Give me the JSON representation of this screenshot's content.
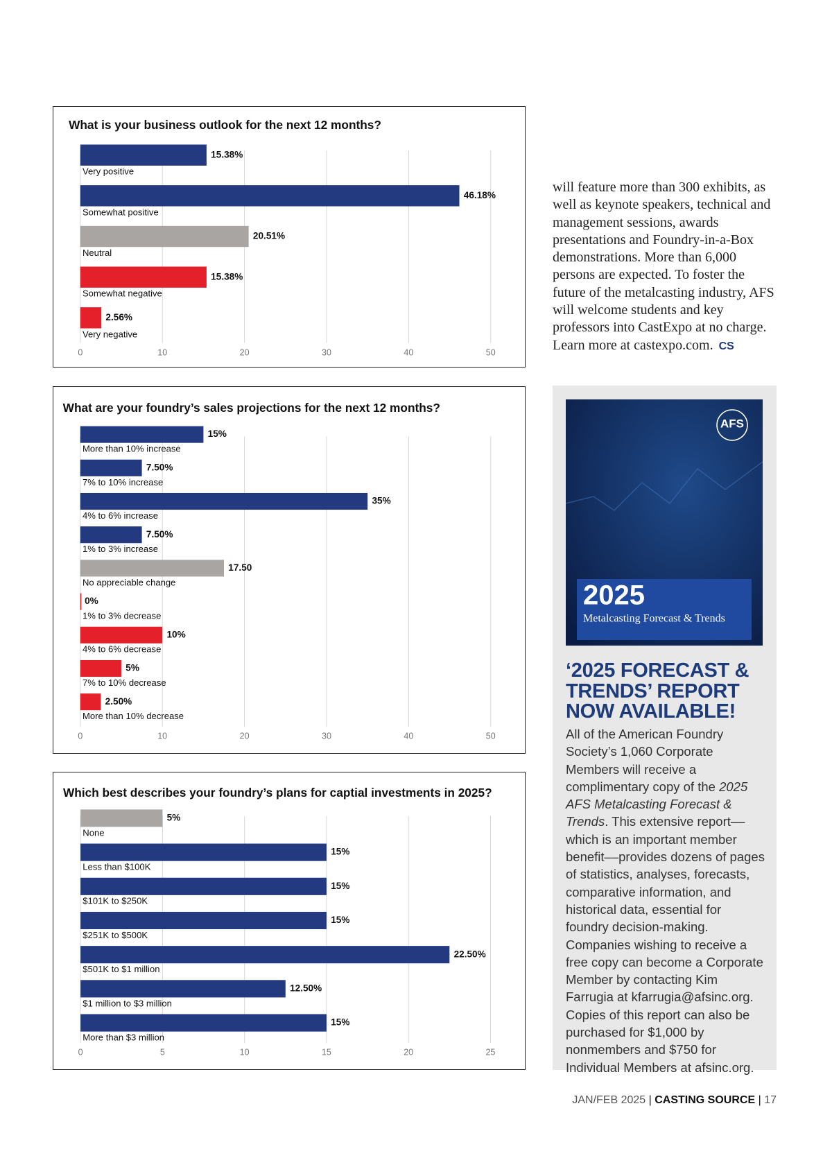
{
  "chart_data": [
    {
      "type": "bar",
      "orientation": "horizontal",
      "title": "What is your business outlook for the next 12 months?",
      "categories": [
        "Very positive",
        "Somewhat positive",
        "Neutral",
        "Somewhat negative",
        "Very negative"
      ],
      "values": [
        15.38,
        46.18,
        20.51,
        15.38,
        2.56
      ],
      "value_labels": [
        "15.38%",
        "46.18%",
        "20.51%",
        "15.38%",
        "2.56%"
      ],
      "colors": [
        "#233a80",
        "#233a80",
        "#a9a5a3",
        "#e4202a",
        "#e4202a"
      ],
      "xlim": [
        0,
        50
      ],
      "xticks": [
        0,
        10,
        20,
        30,
        40,
        50
      ],
      "grid": true
    },
    {
      "type": "bar",
      "orientation": "horizontal",
      "title": "What are your foundry’s sales projections for the next 12 months?",
      "categories": [
        "More than 10% increase",
        "7% to 10% increase",
        "4% to 6% increase",
        "1% to 3% increase",
        "No appreciable change",
        "1% to 3% decrease",
        "4% to 6% decrease",
        "7% to 10% decrease",
        "More than 10% decrease"
      ],
      "values": [
        15,
        7.5,
        35,
        7.5,
        17.5,
        0,
        10,
        5,
        2.5
      ],
      "value_labels": [
        "15%",
        "7.50%",
        "35%",
        "7.50%",
        "17.50",
        "0%",
        "10%",
        "5%",
        "2.50%"
      ],
      "colors": [
        "#233a80",
        "#233a80",
        "#233a80",
        "#233a80",
        "#a9a5a3",
        "#e4202a",
        "#e4202a",
        "#e4202a",
        "#e4202a"
      ],
      "xlim": [
        0,
        50
      ],
      "xticks": [
        0,
        10,
        20,
        30,
        40,
        50
      ],
      "grid": true
    },
    {
      "type": "bar",
      "orientation": "horizontal",
      "title": "Which best describes your foundry’s plans for captial investments in 2025?",
      "categories": [
        "None",
        "Less than $100K",
        "$101K to $250K",
        "$251K to $500K",
        "$501K to $1 million",
        "$1 million to $3 million",
        "More than $3 million"
      ],
      "values": [
        5,
        15,
        15,
        15,
        22.5,
        12.5,
        15
      ],
      "value_labels": [
        "5%",
        "15%",
        "15%",
        "15%",
        "22.50%",
        "12.50%",
        "15%"
      ],
      "colors": [
        "#a9a5a3",
        "#233a80",
        "#233a80",
        "#233a80",
        "#233a80",
        "#233a80",
        "#233a80"
      ],
      "xlim": [
        0,
        25
      ],
      "xticks": [
        0,
        5,
        10,
        15,
        20,
        25
      ],
      "grid": true
    }
  ],
  "article": {
    "text": "will feature more than 300 exhibits, as well as keynote speakers, technical and management sessions, awards presentations and Foundry-in-a-Box demonstrations. More than 6,000 persons are expected. To foster the future of the metalcasting industry, AFS will welcome students and key professors into CastExpo at no charge. Learn more at castexpo.com.",
    "end_mark": "CS"
  },
  "sidebar": {
    "cover": {
      "logo": "AFS",
      "year": "2025",
      "title": "Metalcasting Forecast & Trends"
    },
    "headline": "‘2025 FORECAST & TRENDS’ REPORT NOW AVAILABLE!",
    "body": [
      "All of the American Foundry Society’s 1,060 Corporate Members will receive a complimentary copy of the ",
      "2025 AFS Metalcasting Forecast & Trends",
      ". This extensive report––which is an important member benefit––provides dozens of pages of statistics, analyses, forecasts, comparative information, and historical data, essential for foundry decision-making. Companies wishing to receive a free copy can become a Corporate Member by contacting Kim Farrugia at kfarrugia@afsinc.org. Copies of this report can also be purchased for $1,000 by nonmembers and $750 for Individual Members at afsinc.org."
    ]
  },
  "footer": {
    "issue": "JAN/FEB 2025",
    "magazine": "CASTING SOURCE",
    "page": "17"
  }
}
